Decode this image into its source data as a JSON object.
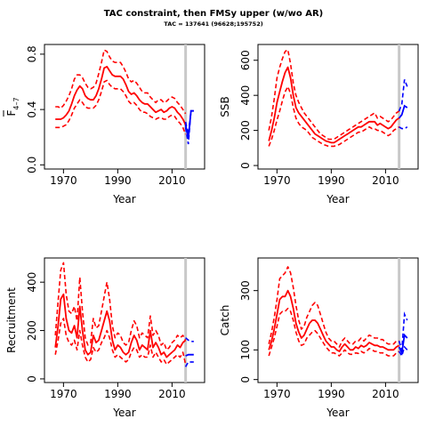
{
  "figure": {
    "title": "TAC constraint, then FMSy upper (w/wo AR)",
    "subtitle": "TAC = 137641 (96628;195752)"
  },
  "colors": {
    "historical": "#ff0000",
    "projection": "#0000ff",
    "marker": "#c8c8c8",
    "axis": "#000000"
  },
  "chart_data": [
    {
      "type": "line",
      "id": "f",
      "ylabel_main": "F",
      "ylabel_sub": "4–7",
      "xlabel": "Year",
      "xlim": [
        1963,
        2022
      ],
      "ylim": [
        -0.03,
        0.87
      ],
      "xticks": [
        1970,
        1990,
        2010
      ],
      "yticks": [
        0.0,
        0.4,
        0.8
      ],
      "ytick_labels": [
        "0.0",
        "0.4",
        "0.8"
      ],
      "marker_year": 2015,
      "x": [
        1967,
        1968,
        1969,
        1970,
        1971,
        1972,
        1973,
        1974,
        1975,
        1976,
        1977,
        1978,
        1979,
        1980,
        1981,
        1982,
        1983,
        1984,
        1985,
        1986,
        1987,
        1988,
        1989,
        1990,
        1991,
        1992,
        1993,
        1994,
        1995,
        1996,
        1997,
        1998,
        1999,
        2000,
        2001,
        2002,
        2003,
        2004,
        2005,
        2006,
        2007,
        2008,
        2009,
        2010,
        2011,
        2012,
        2013,
        2014,
        2015
      ],
      "series": [
        {
          "role": "estimate",
          "values": [
            0.33,
            0.33,
            0.33,
            0.34,
            0.36,
            0.39,
            0.44,
            0.5,
            0.54,
            0.57,
            0.55,
            0.5,
            0.48,
            0.47,
            0.47,
            0.5,
            0.55,
            0.62,
            0.7,
            0.71,
            0.68,
            0.65,
            0.64,
            0.64,
            0.64,
            0.62,
            0.58,
            0.53,
            0.51,
            0.52,
            0.5,
            0.47,
            0.45,
            0.44,
            0.44,
            0.42,
            0.4,
            0.38,
            0.39,
            0.4,
            0.38,
            0.39,
            0.41,
            0.42,
            0.41,
            0.38,
            0.36,
            0.33,
            0.29
          ]
        },
        {
          "role": "upper",
          "values": [
            0.42,
            0.42,
            0.41,
            0.43,
            0.46,
            0.5,
            0.55,
            0.62,
            0.65,
            0.65,
            0.63,
            0.59,
            0.56,
            0.55,
            0.56,
            0.59,
            0.66,
            0.74,
            0.83,
            0.82,
            0.78,
            0.75,
            0.74,
            0.74,
            0.74,
            0.71,
            0.67,
            0.62,
            0.6,
            0.61,
            0.59,
            0.56,
            0.53,
            0.52,
            0.52,
            0.49,
            0.47,
            0.45,
            0.47,
            0.47,
            0.45,
            0.46,
            0.48,
            0.49,
            0.48,
            0.45,
            0.43,
            0.4,
            0.37
          ]
        },
        {
          "role": "lower",
          "values": [
            0.27,
            0.27,
            0.27,
            0.28,
            0.29,
            0.32,
            0.36,
            0.41,
            0.44,
            0.47,
            0.45,
            0.42,
            0.41,
            0.41,
            0.41,
            0.43,
            0.47,
            0.53,
            0.6,
            0.61,
            0.58,
            0.56,
            0.55,
            0.55,
            0.55,
            0.53,
            0.5,
            0.46,
            0.44,
            0.45,
            0.43,
            0.4,
            0.38,
            0.38,
            0.37,
            0.35,
            0.34,
            0.33,
            0.34,
            0.34,
            0.33,
            0.33,
            0.35,
            0.36,
            0.35,
            0.32,
            0.3,
            0.27,
            0.22
          ]
        }
      ],
      "projection": {
        "x": [
          2015,
          2016,
          2017,
          2018
        ],
        "estimate": [
          0.29,
          0.19,
          0.39,
          0.39
        ],
        "upper": [
          0.31,
          0.22,
          0.39,
          0.39
        ],
        "lower": [
          0.27,
          0.15,
          0.39,
          0.39
        ]
      }
    },
    {
      "type": "line",
      "id": "ssb",
      "ylabel_main": "SSB",
      "ylabel_sub": "",
      "xlabel": "Year",
      "xlim": [
        1963,
        2022
      ],
      "ylim": [
        -20,
        690
      ],
      "xticks": [
        1970,
        1990,
        2010
      ],
      "yticks": [
        0,
        200,
        400,
        600
      ],
      "ytick_labels": [
        "0",
        "200",
        "400",
        "600"
      ],
      "marker_year": 2015,
      "x": [
        1967,
        1968,
        1969,
        1970,
        1971,
        1972,
        1973,
        1974,
        1975,
        1976,
        1977,
        1978,
        1979,
        1980,
        1981,
        1982,
        1983,
        1984,
        1985,
        1986,
        1987,
        1988,
        1989,
        1990,
        1991,
        1992,
        1993,
        1994,
        1995,
        1996,
        1997,
        1998,
        1999,
        2000,
        2001,
        2002,
        2003,
        2004,
        2005,
        2006,
        2007,
        2008,
        2009,
        2010,
        2011,
        2012,
        2013,
        2014,
        2015
      ],
      "series": [
        {
          "role": "estimate",
          "values": [
            140,
            200,
            270,
            360,
            420,
            480,
            530,
            560,
            500,
            400,
            330,
            300,
            280,
            260,
            240,
            220,
            200,
            180,
            170,
            160,
            150,
            140,
            135,
            130,
            130,
            140,
            150,
            160,
            170,
            180,
            190,
            200,
            210,
            220,
            220,
            230,
            240,
            250,
            250,
            250,
            230,
            240,
            230,
            220,
            210,
            220,
            240,
            260,
            270
          ]
        },
        {
          "role": "upper",
          "values": [
            200,
            280,
            380,
            500,
            560,
            610,
            650,
            660,
            580,
            470,
            400,
            360,
            330,
            300,
            280,
            260,
            240,
            220,
            200,
            180,
            170,
            160,
            150,
            150,
            150,
            160,
            170,
            180,
            190,
            200,
            210,
            220,
            230,
            240,
            250,
            260,
            270,
            280,
            290,
            300,
            270,
            280,
            270,
            260,
            250,
            260,
            280,
            300,
            310
          ]
        },
        {
          "role": "lower",
          "values": [
            110,
            150,
            200,
            260,
            310,
            370,
            420,
            450,
            410,
            330,
            270,
            240,
            220,
            210,
            200,
            180,
            160,
            150,
            140,
            130,
            120,
            115,
            110,
            110,
            110,
            115,
            120,
            130,
            140,
            150,
            160,
            170,
            180,
            190,
            190,
            200,
            210,
            220,
            210,
            210,
            200,
            200,
            190,
            180,
            170,
            180,
            200,
            210,
            220
          ]
        }
      ],
      "projection": {
        "x": [
          2015,
          2016,
          2017,
          2018
        ],
        "estimate": [
          270,
          290,
          340,
          330
        ],
        "upper": [
          310,
          350,
          490,
          450
        ],
        "lower": [
          220,
          210,
          210,
          220
        ]
      }
    },
    {
      "type": "line",
      "id": "recruitment",
      "ylabel_main": "Recruitment",
      "ylabel_sub": "",
      "xlabel": "Year",
      "xlim": [
        1963,
        2022
      ],
      "ylim": [
        -15,
        500
      ],
      "xticks": [
        1970,
        1990,
        2010
      ],
      "yticks": [
        0,
        200,
        400
      ],
      "ytick_labels": [
        "0",
        "200",
        "400"
      ],
      "marker_year": 2015,
      "x": [
        1967,
        1968,
        1969,
        1970,
        1971,
        1972,
        1973,
        1974,
        1975,
        1976,
        1977,
        1978,
        1979,
        1980,
        1981,
        1982,
        1983,
        1984,
        1985,
        1986,
        1987,
        1988,
        1989,
        1990,
        1991,
        1992,
        1993,
        1994,
        1995,
        1996,
        1997,
        1998,
        1999,
        2000,
        2001,
        2002,
        2003,
        2004,
        2005,
        2006,
        2007,
        2008,
        2009,
        2010,
        2011,
        2012,
        2013,
        2014,
        2015
      ],
      "series": [
        {
          "role": "estimate",
          "values": [
            130,
            220,
            330,
            350,
            250,
            200,
            190,
            220,
            170,
            300,
            200,
            120,
            100,
            110,
            180,
            150,
            160,
            200,
            240,
            280,
            240,
            160,
            120,
            140,
            130,
            110,
            100,
            110,
            150,
            180,
            160,
            120,
            140,
            130,
            120,
            200,
            130,
            150,
            130,
            100,
            110,
            90,
            100,
            110,
            120,
            140,
            130,
            150,
            160
          ]
        },
        {
          "role": "upper",
          "values": [
            180,
            320,
            450,
            480,
            350,
            280,
            270,
            300,
            240,
            420,
            280,
            170,
            140,
            150,
            250,
            210,
            220,
            280,
            340,
            400,
            330,
            220,
            170,
            190,
            180,
            150,
            140,
            150,
            200,
            240,
            220,
            170,
            190,
            180,
            170,
            260,
            180,
            200,
            180,
            140,
            150,
            120,
            130,
            150,
            160,
            180,
            170,
            180,
            160
          ]
        },
        {
          "role": "lower",
          "values": [
            100,
            160,
            230,
            250,
            180,
            150,
            140,
            160,
            120,
            200,
            140,
            90,
            70,
            80,
            130,
            110,
            120,
            150,
            170,
            200,
            170,
            120,
            90,
            100,
            90,
            80,
            70,
            80,
            110,
            130,
            120,
            90,
            100,
            90,
            90,
            140,
            90,
            110,
            90,
            70,
            80,
            60,
            70,
            80,
            90,
            100,
            90,
            110,
            60
          ]
        }
      ],
      "projection": {
        "x": [
          2015,
          2016,
          2017,
          2018
        ],
        "estimate": [
          95,
          100,
          100,
          100
        ],
        "upper": [
          170,
          160,
          155,
          155
        ],
        "lower": [
          50,
          70,
          70,
          70
        ]
      }
    },
    {
      "type": "line",
      "id": "catch",
      "ylabel_main": "Catch",
      "ylabel_sub": "",
      "xlabel": "Year",
      "xlim": [
        1963,
        2022
      ],
      "ylim": [
        -10,
        410
      ],
      "xticks": [
        1970,
        1990,
        2010
      ],
      "yticks": [
        0,
        100,
        300
      ],
      "ytick_labels": [
        "0",
        "100",
        "300"
      ],
      "marker_year": 2015,
      "x": [
        1967,
        1968,
        1969,
        1970,
        1971,
        1972,
        1973,
        1974,
        1975,
        1976,
        1977,
        1978,
        1979,
        1980,
        1981,
        1982,
        1983,
        1984,
        1985,
        1986,
        1987,
        1988,
        1989,
        1990,
        1991,
        1992,
        1993,
        1994,
        1995,
        1996,
        1997,
        1998,
        1999,
        2000,
        2001,
        2002,
        2003,
        2004,
        2005,
        2006,
        2007,
        2008,
        2009,
        2010,
        2011,
        2012,
        2013,
        2014,
        2015
      ],
      "series": [
        {
          "role": "estimate",
          "values": [
            100,
            130,
            170,
            220,
            270,
            280,
            280,
            300,
            280,
            240,
            190,
            160,
            140,
            150,
            170,
            190,
            200,
            200,
            190,
            170,
            150,
            130,
            120,
            110,
            110,
            100,
            95,
            110,
            120,
            110,
            100,
            100,
            110,
            105,
            115,
            110,
            115,
            125,
            120,
            115,
            115,
            110,
            110,
            105,
            100,
            100,
            100,
            110,
            115
          ]
        },
        {
          "role": "upper",
          "values": [
            120,
            160,
            210,
            270,
            340,
            350,
            360,
            380,
            360,
            310,
            250,
            200,
            170,
            180,
            210,
            230,
            250,
            260,
            250,
            220,
            190,
            160,
            140,
            130,
            130,
            120,
            110,
            130,
            140,
            130,
            120,
            120,
            130,
            130,
            140,
            130,
            140,
            150,
            145,
            140,
            140,
            135,
            135,
            125,
            120,
            120,
            120,
            130,
            130
          ]
        },
        {
          "role": "lower",
          "values": [
            80,
            110,
            140,
            180,
            220,
            230,
            230,
            240,
            230,
            200,
            160,
            130,
            115,
            120,
            140,
            150,
            160,
            165,
            155,
            140,
            125,
            110,
            100,
            90,
            90,
            85,
            80,
            90,
            100,
            90,
            85,
            85,
            90,
            88,
            95,
            90,
            95,
            105,
            100,
            95,
            95,
            90,
            90,
            85,
            80,
            80,
            80,
            90,
            95
          ]
        }
      ],
      "projection": {
        "x": [
          2015,
          2016,
          2017,
          2018
        ],
        "estimate": [
          110,
          90,
          150,
          140
        ],
        "upper": [
          130,
          100,
          220,
          200
        ],
        "lower": [
          95,
          80,
          110,
          100
        ]
      }
    }
  ]
}
